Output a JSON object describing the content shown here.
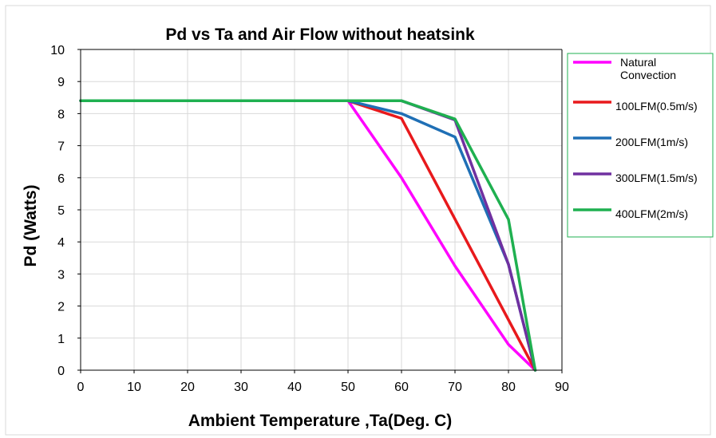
{
  "chart_data": {
    "type": "line",
    "title": "Pd vs Ta and Air Flow without heatsink",
    "xlabel": "Ambient Temperature ,Ta(Deg. C)",
    "ylabel": "Pd (Watts)",
    "xlim": [
      0,
      90
    ],
    "ylim": [
      0,
      10
    ],
    "x_ticks": [
      "0",
      "10",
      "20",
      "30",
      "40",
      "50",
      "60",
      "70",
      "80",
      "90"
    ],
    "y_ticks": [
      "0",
      "1",
      "2",
      "3",
      "4",
      "5",
      "6",
      "7",
      "8",
      "9",
      "10"
    ],
    "grid": true,
    "legend_position": "right",
    "series": [
      {
        "name": "Natural Convection",
        "name_lines": [
          "Natural",
          "Convection"
        ],
        "color": "#ff00ff",
        "x": [
          0,
          50,
          60,
          70,
          80,
          85
        ],
        "y": [
          8.4,
          8.4,
          6.0,
          3.25,
          0.8,
          0
        ]
      },
      {
        "name": "100LFM(0.5m/s)",
        "name_lines": [
          "100LFM(0.5m/s)"
        ],
        "color": "#e8191c",
        "x": [
          0,
          50,
          60,
          85
        ],
        "y": [
          8.4,
          8.4,
          7.85,
          0
        ]
      },
      {
        "name": "200LFM(1m/s)",
        "name_lines": [
          "200LFM(1m/s)"
        ],
        "color": "#1f6fb5",
        "x": [
          0,
          50,
          60,
          70,
          80,
          85
        ],
        "y": [
          8.4,
          8.4,
          8.0,
          7.27,
          3.3,
          0
        ]
      },
      {
        "name": "300LFM(1.5m/s)",
        "name_lines": [
          "300LFM(1.5m/s)"
        ],
        "color": "#7030a0",
        "x": [
          0,
          50,
          60,
          70,
          80,
          85
        ],
        "y": [
          8.4,
          8.4,
          8.4,
          7.8,
          3.3,
          0
        ]
      },
      {
        "name": "400LFM(2m/s)",
        "name_lines": [
          "400LFM(2m/s)"
        ],
        "color": "#1fb050",
        "x": [
          0,
          50,
          60,
          70,
          80,
          85
        ],
        "y": [
          8.4,
          8.4,
          8.4,
          7.83,
          4.7,
          0
        ]
      }
    ]
  }
}
